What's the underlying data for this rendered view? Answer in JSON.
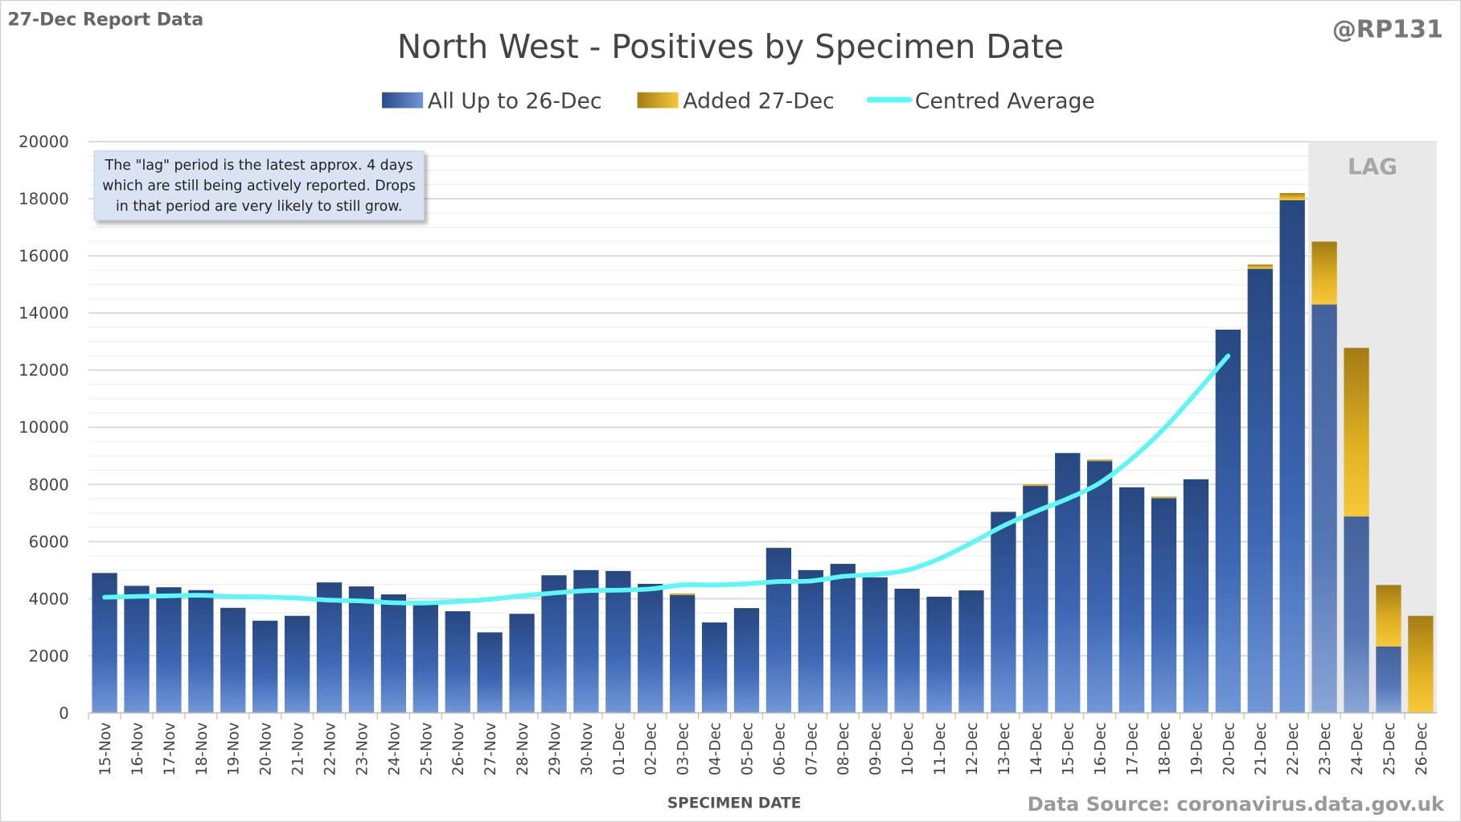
{
  "header": {
    "report_label": "27-Dec Report Data",
    "handle": "@RP131",
    "source": "Data Source: coronavirus.data.gov.uk"
  },
  "annotation": {
    "lines": [
      "The \"lag\" period is the latest approx. 4 days",
      "which are still being actively reported.  Drops",
      "in that period are very likely to still grow."
    ]
  },
  "lag_label": "LAG",
  "colors": {
    "blue": "#2f5597",
    "gold": "#d4a017",
    "avg": "#5ef6f6",
    "lag_bg": "#e9e9e9"
  },
  "chart_data": {
    "type": "bar",
    "stacked": true,
    "title": "North West - Positives by Specimen Date",
    "xlabel": "SPECIMEN DATE",
    "ylabel": "",
    "ylim": [
      0,
      20000
    ],
    "yticks": [
      0,
      2000,
      4000,
      6000,
      8000,
      10000,
      12000,
      14000,
      16000,
      18000,
      20000
    ],
    "grid": true,
    "legend_placement": "top-center",
    "categories": [
      "15-Nov",
      "16-Nov",
      "17-Nov",
      "18-Nov",
      "19-Nov",
      "20-Nov",
      "21-Nov",
      "22-Nov",
      "23-Nov",
      "24-Nov",
      "25-Nov",
      "26-Nov",
      "27-Nov",
      "28-Nov",
      "29-Nov",
      "30-Nov",
      "01-Dec",
      "02-Dec",
      "03-Dec",
      "04-Dec",
      "05-Dec",
      "06-Dec",
      "07-Dec",
      "08-Dec",
      "09-Dec",
      "10-Dec",
      "11-Dec",
      "12-Dec",
      "13-Dec",
      "14-Dec",
      "15-Dec",
      "16-Dec",
      "17-Dec",
      "18-Dec",
      "19-Dec",
      "20-Dec",
      "21-Dec",
      "22-Dec",
      "23-Dec",
      "24-Dec",
      "25-Dec",
      "26-Dec"
    ],
    "lag_categories": [
      "23-Dec",
      "24-Dec",
      "25-Dec",
      "26-Dec"
    ],
    "series": [
      {
        "name": "All Up to 26-Dec",
        "values": [
          4900,
          4450,
          4400,
          4300,
          3680,
          3230,
          3400,
          4570,
          4430,
          4150,
          3830,
          3560,
          2820,
          3470,
          4820,
          5000,
          4970,
          4520,
          4130,
          3170,
          3670,
          5780,
          5000,
          5220,
          4750,
          4350,
          4070,
          4290,
          7040,
          7950,
          9100,
          8820,
          7900,
          7520,
          8180,
          13420,
          15550,
          17950,
          14300,
          6880,
          2330,
          0
        ]
      },
      {
        "name": "Added 27-Dec",
        "values": [
          0,
          0,
          0,
          0,
          0,
          0,
          0,
          0,
          0,
          0,
          0,
          0,
          0,
          0,
          0,
          0,
          0,
          0,
          50,
          0,
          0,
          0,
          0,
          0,
          0,
          0,
          0,
          0,
          0,
          50,
          0,
          50,
          0,
          50,
          0,
          0,
          150,
          250,
          2200,
          5900,
          2150,
          3400
        ]
      },
      {
        "name": "Centred Average",
        "type": "line",
        "values": [
          4050,
          4080,
          4100,
          4120,
          4070,
          4060,
          4020,
          3950,
          3920,
          3860,
          3850,
          3900,
          3980,
          4100,
          4200,
          4280,
          4300,
          4340,
          4480,
          4480,
          4520,
          4600,
          4620,
          4780,
          4850,
          5000,
          5400,
          5950,
          6550,
          7050,
          7500,
          8050,
          8900,
          9950,
          11200,
          12500,
          null,
          null,
          null,
          null,
          null,
          null
        ]
      }
    ]
  }
}
